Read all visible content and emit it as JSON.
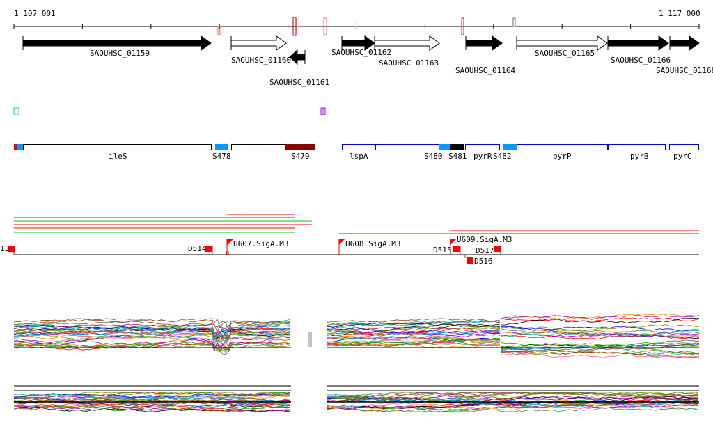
{
  "ruler": {
    "start_label": "1 107 001",
    "end_label": "1 117 000"
  },
  "genes": [
    {
      "name": "SAOUHSC_01159",
      "strand": "+",
      "filled": true
    },
    {
      "name": "SAOUHSC_01160",
      "strand": "+",
      "filled": false
    },
    {
      "name": "SAOUHSC_01161",
      "strand": "-",
      "filled": true
    },
    {
      "name": "SAOUHSC_01162",
      "strand": "+",
      "filled": true
    },
    {
      "name": "SAOUHSC_01163",
      "strand": "+",
      "filled": false
    },
    {
      "name": "SAOUHSC_01164",
      "strand": "+",
      "filled": true
    },
    {
      "name": "SAOUHSC_01165",
      "strand": "+",
      "filled": false
    },
    {
      "name": "SAOUHSC_01166",
      "strand": "+",
      "filled": true
    },
    {
      "name": "SAOUHSC_01168",
      "strand": "+",
      "filled": true
    }
  ],
  "segments": {
    "labels": [
      "ileS",
      "S478",
      "S479",
      "lspA",
      "S480",
      "S481",
      "pyrR",
      "S482",
      "pyrP",
      "pyrB",
      "pyrC"
    ]
  },
  "features": {
    "labels": [
      "13",
      "D514",
      "U607.SigA.M3",
      "U608.SigA.M3",
      "D515",
      "U609.SigA.M3",
      "D517",
      "D516"
    ]
  },
  "colors": {
    "red": "#ff0000",
    "dark_red": "#8b0000",
    "blue_fill": "#0099ff",
    "blue_border": "#0000dd",
    "green": "#00cc00",
    "trace_palette": [
      "#000000",
      "#ff0000",
      "#00aa00",
      "#0000ff",
      "#ff8800",
      "#aa00aa",
      "#00aaaa",
      "#888800",
      "#884400",
      "#666666",
      "#ff66aa",
      "#66aa00",
      "#0088ff",
      "#aa4444",
      "#448844"
    ]
  }
}
